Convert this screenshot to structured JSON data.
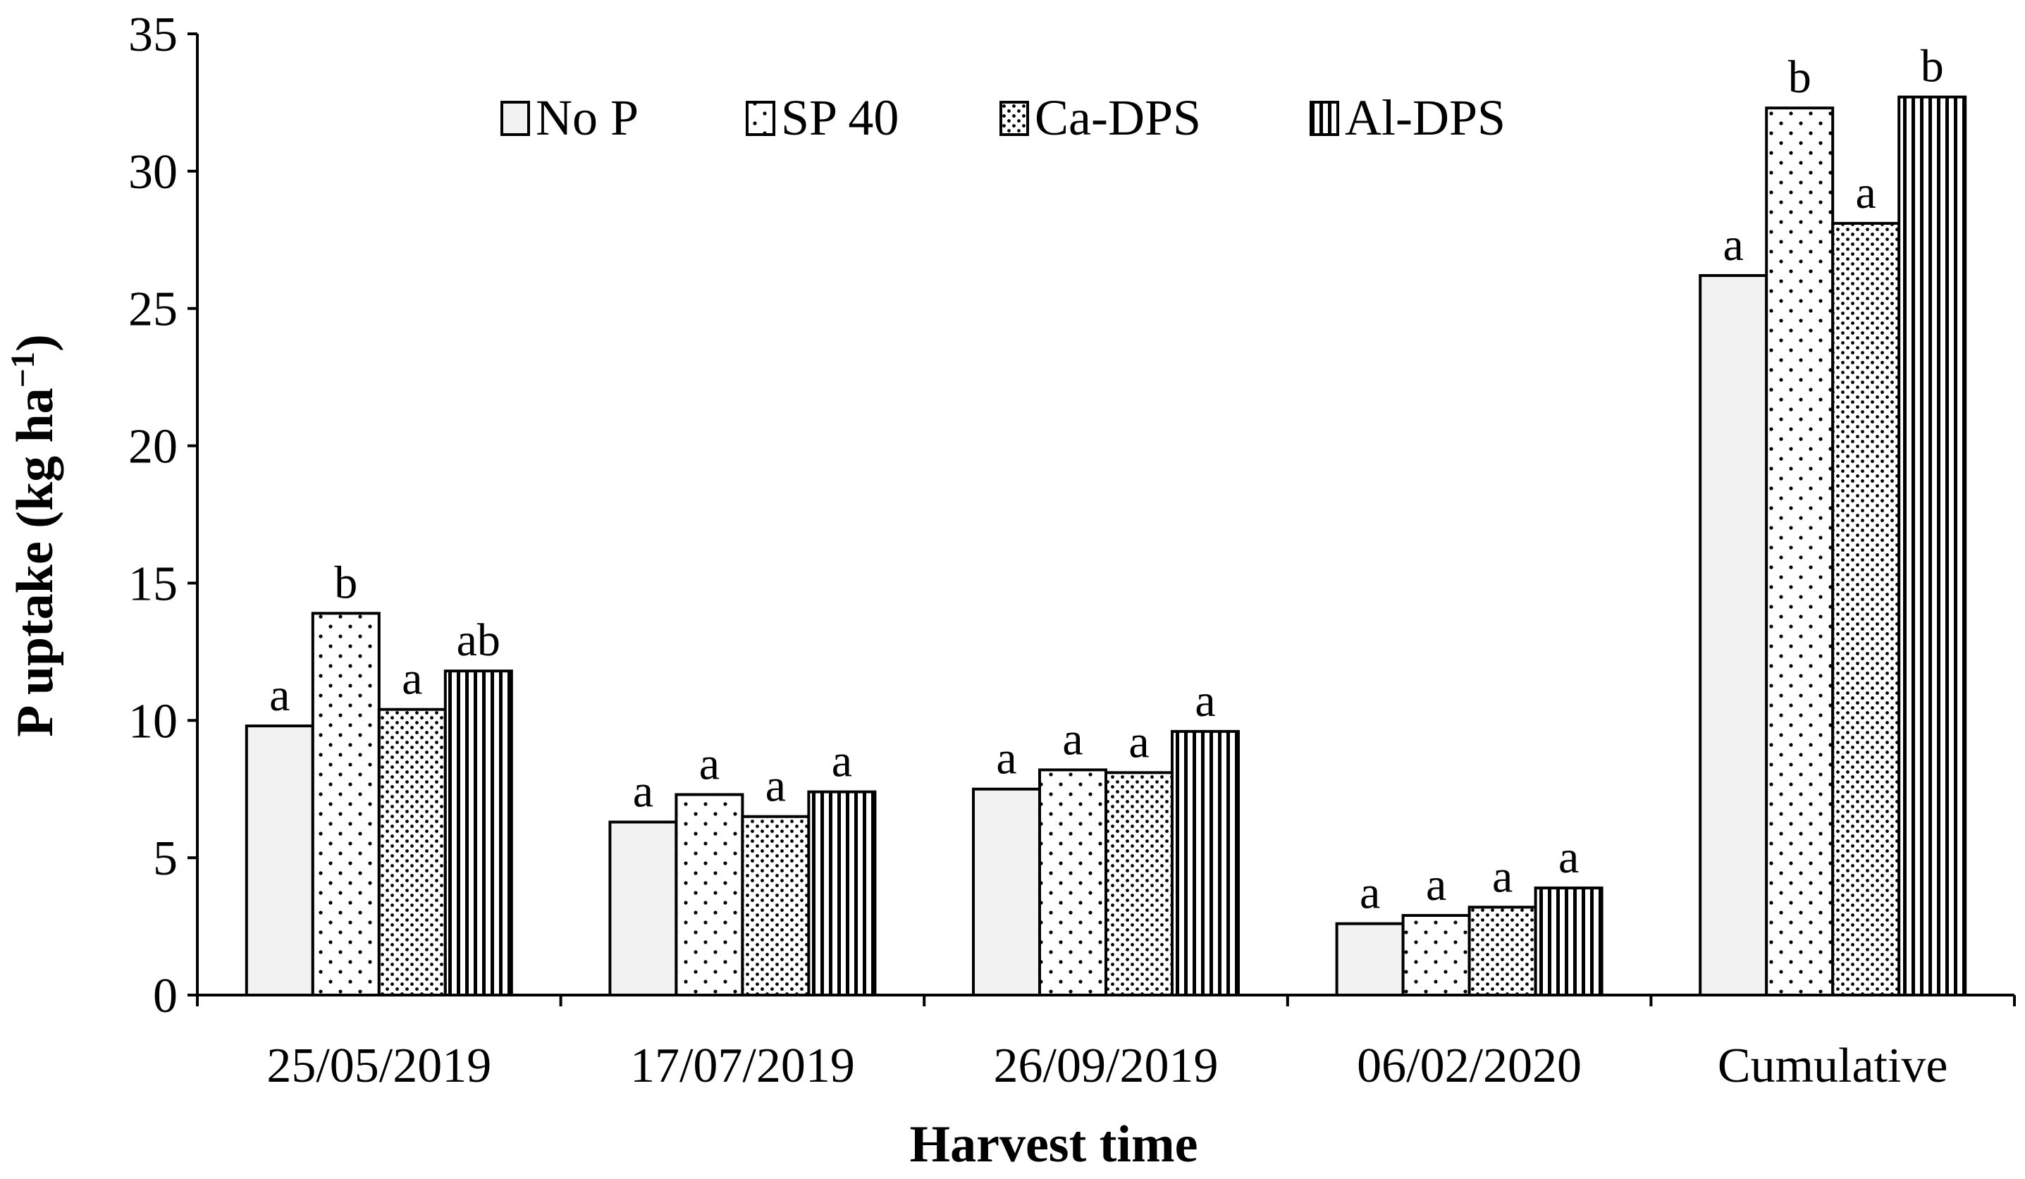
{
  "chart_data": {
    "type": "bar",
    "title": "",
    "xlabel": "Harvest time",
    "ylabel": "P uptake (kg ha",
    "ylabel_superscript": "−1",
    "ylabel_close": ")",
    "ylim": [
      0,
      35
    ],
    "yticks": [
      "0",
      "5",
      "10",
      "15",
      "20",
      "25",
      "30",
      "35"
    ],
    "categories": [
      "25/05/2019",
      "17/07/2019",
      "26/09/2019",
      "06/02/2020",
      "Cumulative"
    ],
    "legend_position": "top-center",
    "series": [
      {
        "name": "No P",
        "pattern": "solid-light",
        "values": [
          9.8,
          6.3,
          7.5,
          2.6,
          26.2
        ],
        "letters": [
          "a",
          "a",
          "a",
          "a",
          "a"
        ]
      },
      {
        "name": "SP 40",
        "pattern": "sparse-dots",
        "values": [
          13.9,
          7.3,
          8.2,
          2.9,
          32.3
        ],
        "letters": [
          "b",
          "a",
          "a",
          "a",
          "b"
        ]
      },
      {
        "name": "Ca-DPS",
        "pattern": "dense-dots",
        "values": [
          10.4,
          6.5,
          8.1,
          3.2,
          28.1
        ],
        "letters": [
          "a",
          "a",
          "a",
          "a",
          "a"
        ]
      },
      {
        "name": "Al-DPS",
        "pattern": "vertical-stripes",
        "values": [
          11.8,
          7.4,
          9.6,
          3.9,
          32.7
        ],
        "letters": [
          "ab",
          "a",
          "a",
          "a",
          "b"
        ]
      }
    ]
  }
}
